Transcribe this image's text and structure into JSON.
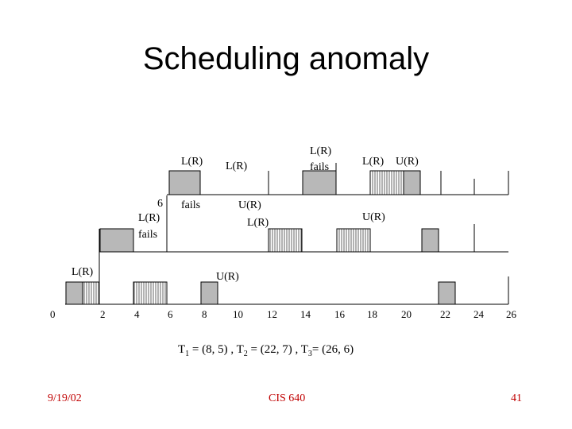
{
  "title": "Scheduling anomaly",
  "colors": {
    "footer": "#c00000",
    "busy": "#b8b8b8",
    "hatch": "#666666"
  },
  "time_axis": {
    "ticks": [
      "0",
      "2",
      "4",
      "6",
      "8",
      "10",
      "12",
      "14",
      "16",
      "18",
      "20",
      "22",
      "24",
      "26"
    ]
  },
  "rows": {
    "task1": {
      "labels": {
        "lr1": "L(R)",
        "fails": "fails",
        "lr2": "L(R)",
        "lr_fails": "L(R)",
        "fails2": "fails",
        "lr3": "L(R)",
        "ur": "U(R)"
      }
    },
    "task2": {
      "labels": {
        "six": "6",
        "lr1": "L(R)",
        "fails": "fails",
        "ur1": "U(R)",
        "lr2": "L(R)",
        "ur2": "U(R)"
      }
    },
    "task3": {
      "labels": {
        "lr": "L(R)",
        "ur": "U(R)"
      }
    }
  },
  "formula": {
    "t1_label": "T",
    "t1_sub": "1",
    "t1_val": " = (8, 5) , ",
    "t2_label": "T",
    "t2_sub": "2",
    "t2_val": " = (22, 7) , ",
    "t3_label": "T",
    "t3_sub": "3",
    "t3_val": "= (26, 6)"
  },
  "footer": {
    "date": "9/19/02",
    "course": "CIS 640",
    "page": "41"
  }
}
